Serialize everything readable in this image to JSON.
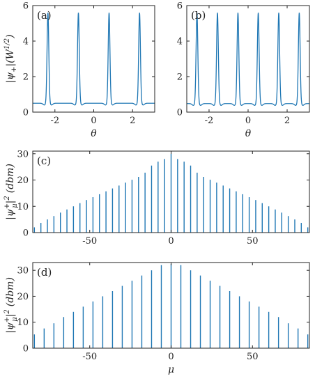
{
  "figure": {
    "line_color": "#1f77b4",
    "axis_color": "#222222",
    "background": "#ffffff"
  },
  "chart_data": [
    {
      "panel": "a",
      "type": "line",
      "tag": "(a)",
      "xlabel": "θ",
      "ylabel": "|ψ+|(W^{1/2})",
      "ylabel_parts": {
        "main": "|ψ",
        "sub": "+",
        "mid": "|(W",
        "sup": "1/2",
        "end": ")"
      },
      "xlim": [
        -3.14159,
        3.14159
      ],
      "ylim": [
        0,
        6
      ],
      "xticks": [
        -2,
        0,
        2
      ],
      "xtick_labels": [
        "-2",
        "0",
        "2"
      ],
      "yticks": [
        0,
        2,
        4,
        6
      ],
      "ytick_labels": [
        "0",
        "2",
        "4",
        "6"
      ],
      "grid": false,
      "baseline": 0.5,
      "dip": 0.4,
      "peak": 5.6,
      "peak_positions": [
        -2.36,
        -0.79,
        0.79,
        2.36
      ]
    },
    {
      "panel": "b",
      "type": "line",
      "tag": "(b)",
      "xlabel": "θ",
      "ylabel": "",
      "xlim": [
        -3.14159,
        3.14159
      ],
      "ylim": [
        0,
        6
      ],
      "xticks": [
        -2,
        0,
        2
      ],
      "xtick_labels": [
        "-2",
        "0",
        "2"
      ],
      "yticks": [
        0,
        2,
        4,
        6
      ],
      "ytick_labels": [
        "0",
        "2",
        "4",
        "6"
      ],
      "grid": false,
      "baseline": 0.48,
      "dip": 0.38,
      "peak": 5.6,
      "peak_positions": [
        -2.62,
        -1.57,
        -0.52,
        0.52,
        1.57,
        2.62
      ]
    },
    {
      "panel": "c",
      "type": "bar",
      "tag": "(c)",
      "xlabel": "",
      "ylabel": "|ψ_μ^+|^2 (dbm)",
      "ylabel_parts": {
        "main": "|ψ",
        "sup": "+",
        "sub": "μ",
        "end": "|",
        "sq": "2",
        "unit": "(dbm)"
      },
      "xlim": [
        -85,
        85
      ],
      "ylim": [
        0,
        31
      ],
      "xticks": [
        -50,
        0,
        50
      ],
      "xtick_labels": [
        "-50",
        "0",
        "50"
      ],
      "yticks": [
        0,
        10,
        20,
        30
      ],
      "ytick_labels": [
        "0",
        "10",
        "20",
        "30"
      ],
      "grid": false,
      "x": [
        -84,
        -80,
        -76,
        -72,
        -68,
        -64,
        -60,
        -56,
        -52,
        -48,
        -44,
        -40,
        -36,
        -32,
        -28,
        -24,
        -20,
        -16,
        -12,
        -8,
        -4,
        0,
        4,
        8,
        12,
        16,
        20,
        24,
        28,
        32,
        36,
        40,
        44,
        48,
        52,
        56,
        60,
        64,
        68,
        72,
        76,
        80,
        84
      ],
      "values": [
        2.0,
        3.7,
        5.0,
        6.3,
        7.6,
        8.8,
        10.0,
        11.2,
        12.4,
        13.5,
        14.6,
        15.7,
        16.8,
        17.9,
        19.0,
        20.1,
        21.2,
        22.8,
        25.5,
        27.0,
        28.0,
        30.0,
        28.0,
        27.0,
        25.5,
        22.8,
        21.2,
        20.1,
        19.0,
        17.9,
        16.8,
        15.7,
        14.6,
        13.5,
        12.4,
        11.2,
        10.0,
        8.8,
        7.6,
        6.3,
        5.0,
        3.7,
        2.0
      ]
    },
    {
      "panel": "d",
      "type": "bar",
      "tag": "(d)",
      "xlabel": "μ",
      "ylabel": "|ψ_μ^+|^2 (dbm)",
      "ylabel_parts": {
        "main": "|ψ",
        "sup": "+",
        "sub": "μ",
        "end": "|",
        "sq": "2",
        "unit": "(dbm)"
      },
      "xlim": [
        -85,
        85
      ],
      "ylim": [
        0,
        33
      ],
      "xticks": [
        -50,
        0,
        50
      ],
      "xtick_labels": [
        "-50",
        "0",
        "50"
      ],
      "yticks": [
        0,
        10,
        20,
        30
      ],
      "ytick_labels": [
        "0",
        "10",
        "20",
        "30"
      ],
      "grid": false,
      "x": [
        -84,
        -78,
        -72,
        -66,
        -60,
        -54,
        -48,
        -42,
        -36,
        -30,
        -24,
        -18,
        -12,
        -6,
        0,
        6,
        12,
        18,
        24,
        30,
        36,
        42,
        48,
        54,
        60,
        66,
        72,
        78,
        84
      ],
      "values": [
        5.3,
        7.6,
        9.6,
        12.0,
        14.0,
        16.0,
        18.0,
        20.0,
        22.0,
        24.0,
        26.0,
        28.0,
        30.0,
        32.0,
        32.5,
        32.0,
        30.0,
        28.0,
        26.0,
        24.0,
        22.0,
        20.0,
        18.0,
        16.0,
        14.0,
        12.0,
        9.6,
        7.6,
        5.3
      ]
    }
  ]
}
